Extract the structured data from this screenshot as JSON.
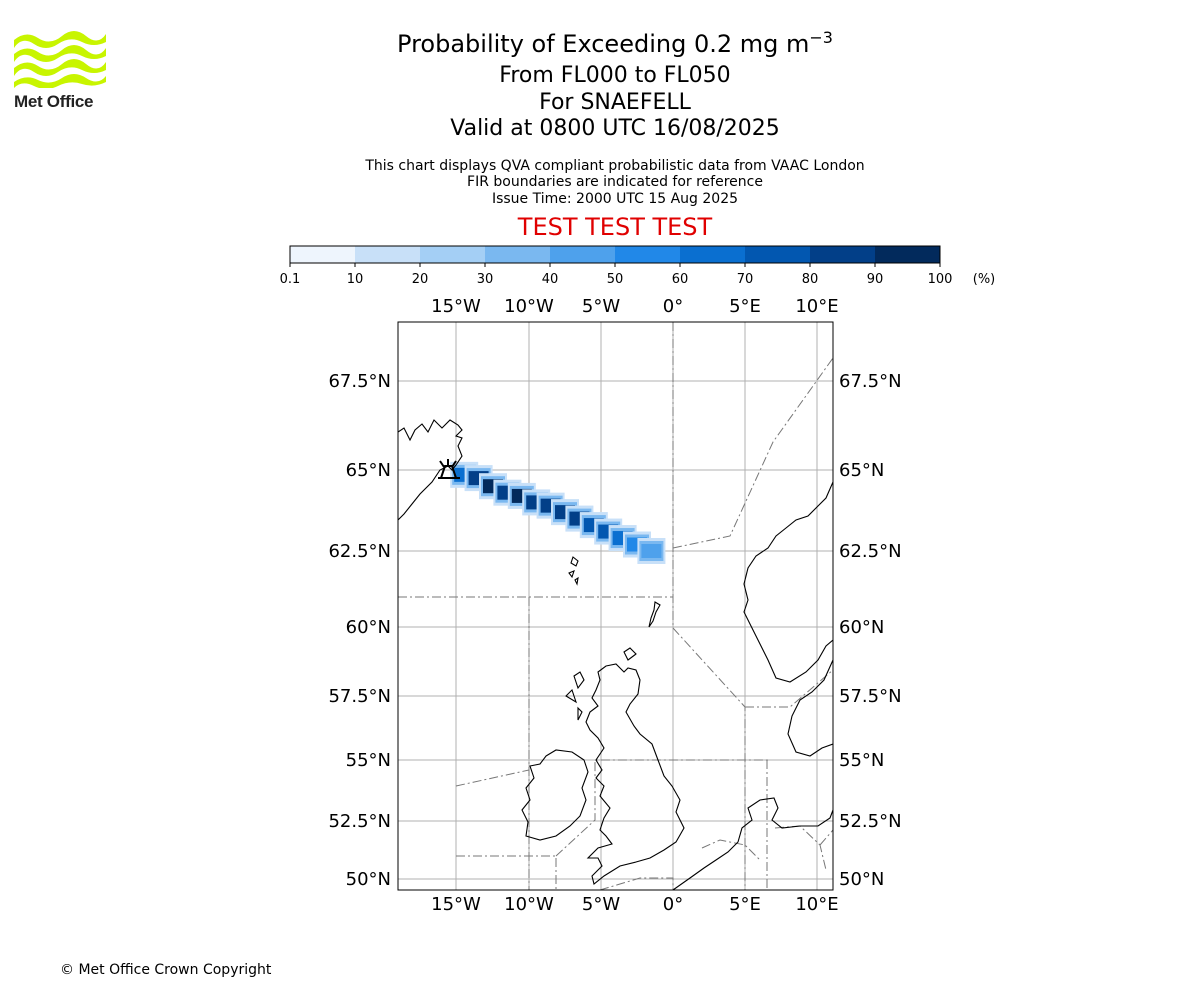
{
  "logo": {
    "text": "Met Office",
    "color": "#c8f500"
  },
  "title": {
    "line1_main": "Probability of Exceeding 0.2 mg m",
    "line1_sup": "−3",
    "line2": "From FL000 to FL050",
    "line3": "For SNAEFELL",
    "line4": "Valid at 0800 UTC 16/08/2025"
  },
  "subtitle": {
    "line1": "This chart displays QVA compliant probabilistic data from VAAC London",
    "line2": "FIR boundaries are indicated for reference",
    "line3": "Issue Time: 2000 UTC 15 Aug 2025"
  },
  "test_banner": "TEST TEST TEST",
  "colorbar": {
    "ticks": [
      "0.1",
      "10",
      "20",
      "30",
      "40",
      "50",
      "60",
      "70",
      "80",
      "90",
      "100"
    ],
    "unit": "(%)",
    "colors": [
      "#eef5fd",
      "#c8e0f8",
      "#a4cff5",
      "#7ab8f0",
      "#4ea1ec",
      "#2188e8",
      "#0a6fd0",
      "#0257b0",
      "#023f88",
      "#022a5c"
    ]
  },
  "map": {
    "lon_labels": [
      "15°W",
      "10°W",
      "5°W",
      "0°",
      "5°E",
      "10°E"
    ],
    "lat_labels": [
      "67.5°N",
      "65°N",
      "62.5°N",
      "60°N",
      "57.5°N",
      "55°N",
      "52.5°N",
      "50°N"
    ],
    "volcano": "SNAEFELL"
  },
  "chart_data": {
    "type": "heatmap",
    "title": "Probability of Exceeding 0.2 mg m−3",
    "units": "%",
    "lon_range": [
      -19,
      11
    ],
    "lat_range": [
      49.6,
      69.5
    ],
    "plume_cells": [
      {
        "lon": -14.5,
        "lat": 64.85,
        "p": 60
      },
      {
        "lon": -13.5,
        "lat": 64.75,
        "p": 85
      },
      {
        "lon": -12.5,
        "lat": 64.5,
        "p": 90
      },
      {
        "lon": -11.5,
        "lat": 64.3,
        "p": 85
      },
      {
        "lon": -10.5,
        "lat": 64.2,
        "p": 90
      },
      {
        "lon": -9.5,
        "lat": 64.0,
        "p": 85
      },
      {
        "lon": -8.5,
        "lat": 63.9,
        "p": 80
      },
      {
        "lon": -7.5,
        "lat": 63.7,
        "p": 85
      },
      {
        "lon": -6.5,
        "lat": 63.5,
        "p": 80
      },
      {
        "lon": -5.5,
        "lat": 63.3,
        "p": 75
      },
      {
        "lon": -4.5,
        "lat": 63.1,
        "p": 70
      },
      {
        "lon": -3.5,
        "lat": 62.9,
        "p": 65
      },
      {
        "lon": -2.5,
        "lat": 62.7,
        "p": 55
      },
      {
        "lon": -1.5,
        "lat": 62.5,
        "p": 40
      }
    ]
  },
  "copyright": "© Met Office Crown Copyright"
}
